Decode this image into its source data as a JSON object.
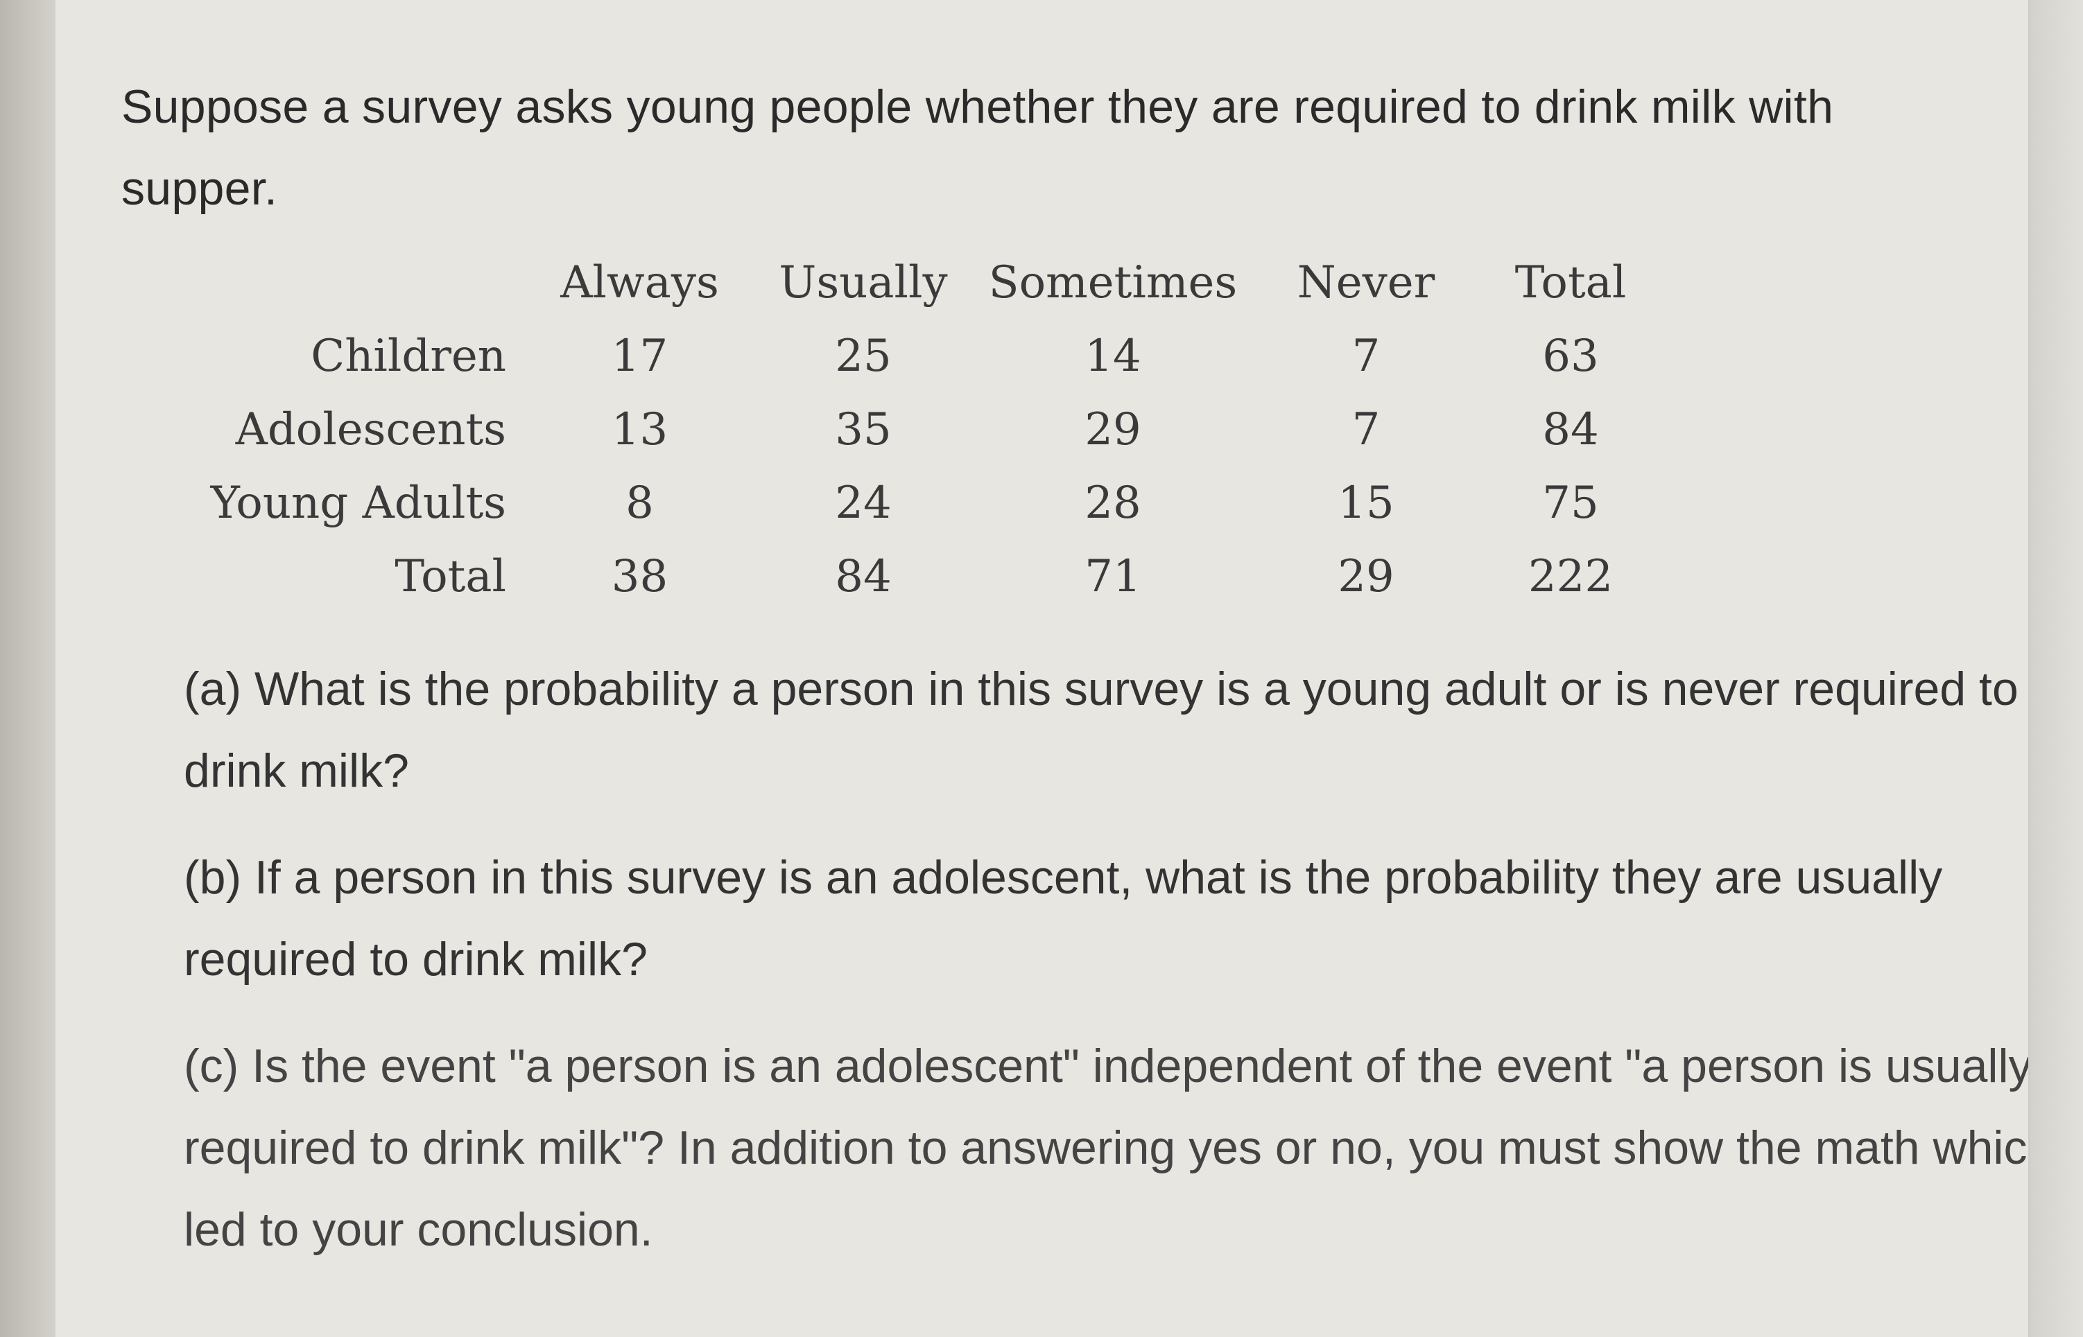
{
  "prompt": "Suppose a survey asks young people whether they are required to drink milk with supper.",
  "table": {
    "headers": [
      "Always",
      "Usually",
      "Sometimes",
      "Never",
      "Total"
    ],
    "rows": [
      {
        "label": "Children",
        "values": [
          "17",
          "25",
          "14",
          "7",
          "63"
        ]
      },
      {
        "label": "Adolescents",
        "values": [
          "13",
          "35",
          "29",
          "7",
          "84"
        ]
      },
      {
        "label": "Young Adults",
        "values": [
          "8",
          "24",
          "28",
          "15",
          "75"
        ]
      },
      {
        "label": "Total",
        "values": [
          "38",
          "84",
          "71",
          "29",
          "222"
        ]
      }
    ]
  },
  "questions": {
    "a": "(a) What is the probability a person in this survey is a young adult or is never required to drink milk?",
    "b": "(b) If a person in this survey is an adolescent, what is the probability they are usually required to drink milk?",
    "c": "(c) Is the event \"a person is an adolescent\" independent of the event \"a person is usually required to drink milk\"? In addition to answering yes or no, you must show the math which led to your conclusion."
  }
}
